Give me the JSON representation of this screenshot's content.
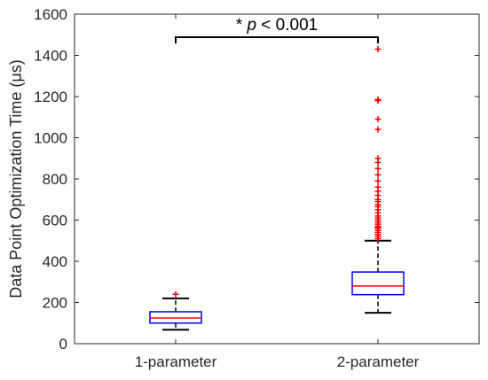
{
  "chart_data": {
    "type": "box",
    "ylabel": "Data Point Optimization Time (μs)",
    "xlabel": "",
    "ylim": [
      0,
      1600
    ],
    "yticks": [
      0,
      200,
      400,
      600,
      800,
      1000,
      1200,
      1400,
      1600
    ],
    "ytick_labels": [
      "0",
      "200",
      "400",
      "600",
      "800",
      "1000",
      "1200",
      "1400",
      "1600"
    ],
    "categories": [
      "1-parameter",
      "2-parameter"
    ],
    "boxes": [
      {
        "category": "1-parameter",
        "whisker_low": 68,
        "q1": 100,
        "median": 125,
        "q3": 155,
        "whisker_high": 220,
        "outliers": [
          240
        ]
      },
      {
        "category": "2-parameter",
        "whisker_low": 150,
        "q1": 238,
        "median": 280,
        "q3": 348,
        "whisker_high": 500,
        "outliers": [
          510,
          520,
          530,
          540,
          550,
          560,
          565,
          570,
          580,
          590,
          600,
          610,
          620,
          635,
          650,
          665,
          675,
          690,
          700,
          720,
          740,
          760,
          790,
          820,
          850,
          880,
          900,
          1040,
          1090,
          1180,
          1185,
          1430
        ]
      }
    ],
    "annotation": {
      "star": "*",
      "p": "p",
      "text": " < 0.001"
    },
    "colors": {
      "box": "#0000ff",
      "median": "#ff0000",
      "outlier": "#ff0000",
      "whisker": "#000000",
      "axis": "#262626"
    },
    "grid": false
  }
}
